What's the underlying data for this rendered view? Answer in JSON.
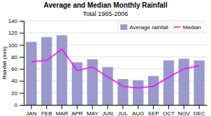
{
  "chart_data": {
    "type": "bar",
    "title": "Average and Median Monthly Rainfall",
    "subtitle": "Total 1965-2006",
    "y_label": "Rainfall (mm)",
    "categories": [
      "JAN",
      "FEB",
      "MAR",
      "APR",
      "MAY",
      "JUN",
      "JUL",
      "AUG",
      "SEP",
      "OCT",
      "NOV",
      "DEC"
    ],
    "series": [
      {
        "name": "Average rainfall",
        "type": "bar",
        "color": "#9999cc",
        "values": [
          105,
          113,
          116,
          71,
          76,
          63,
          43,
          41,
          48,
          74,
          77,
          74
        ]
      },
      {
        "name": "Median",
        "type": "line",
        "color": "#ff00ff",
        "values": [
          72,
          74,
          93,
          57,
          63,
          47,
          31,
          28,
          31,
          46,
          60,
          65
        ]
      }
    ],
    "ylim": [
      0,
      140
    ],
    "yticks": [
      0,
      20,
      40,
      60,
      80,
      100,
      120,
      140
    ],
    "grid": true,
    "legend": "upper right"
  }
}
